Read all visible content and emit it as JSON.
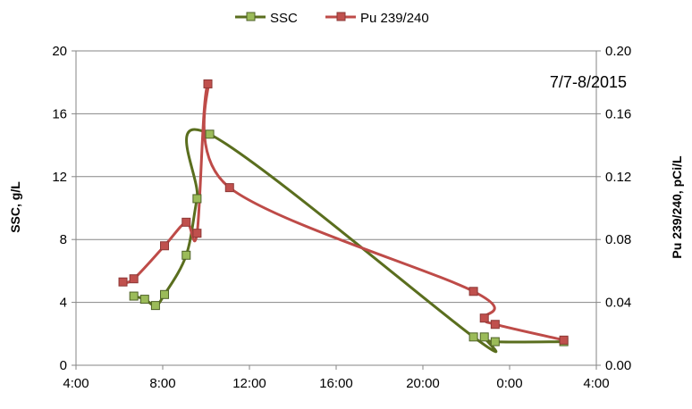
{
  "chart_data": {
    "type": "line",
    "annotation": "7/7-8/2015",
    "ylabel": "SSC, g/L",
    "y2label": "Pu 239/240, pCi/L",
    "x_range_hours": [
      4,
      28
    ],
    "x_ticks": [
      "4:00",
      "8:00",
      "12:00",
      "16:00",
      "20:00",
      "0:00",
      "4:00"
    ],
    "ylim": [
      0,
      20
    ],
    "y_ticks": [
      "0",
      "4",
      "8",
      "12",
      "16",
      "20"
    ],
    "y2lim": [
      0,
      0.2
    ],
    "y2_ticks": [
      "0.00",
      "0.04",
      "0.08",
      "0.12",
      "0.16",
      "0.20"
    ],
    "grid": true,
    "legend_position": "top",
    "series": [
      {
        "name": "SSC",
        "axis": "left",
        "color": "#5a6e1e",
        "marker_fill": "#9bbb59",
        "x_hours": [
          6.4,
          6.9,
          7.5,
          8.0,
          8.9,
          9.4,
          9.9
        ],
        "x_ticks_stub": "",
        "x": [
          "6:40",
          "7:10",
          "7:40",
          "8:05",
          "9:05",
          "9:35",
          "10:10"
        ],
        "values": [
          4.4,
          4.2,
          3.8,
          4.5,
          7.0,
          10.6,
          14.7
        ]
      },
      {
        "name": "Pu 239/240",
        "axis": "right",
        "color": "#be4b48",
        "marker_fill": "#c0504d",
        "x": [
          "6:10",
          "6:40",
          "8:05",
          "9:05",
          "9:35",
          "10:05",
          "11:05",
          "22:20",
          "22:50",
          "23:20",
          "2:30"
        ],
        "values": [
          0.053,
          0.055,
          0.076,
          0.091,
          0.084,
          0.179,
          0.113,
          0.047,
          0.03,
          0.026,
          0.016
        ]
      }
    ],
    "ssc_tail": {
      "x": [
        "22:20",
        "22:50",
        "23:20",
        "2:30"
      ],
      "values": [
        1.8,
        1.8,
        1.5,
        1.5
      ]
    }
  }
}
